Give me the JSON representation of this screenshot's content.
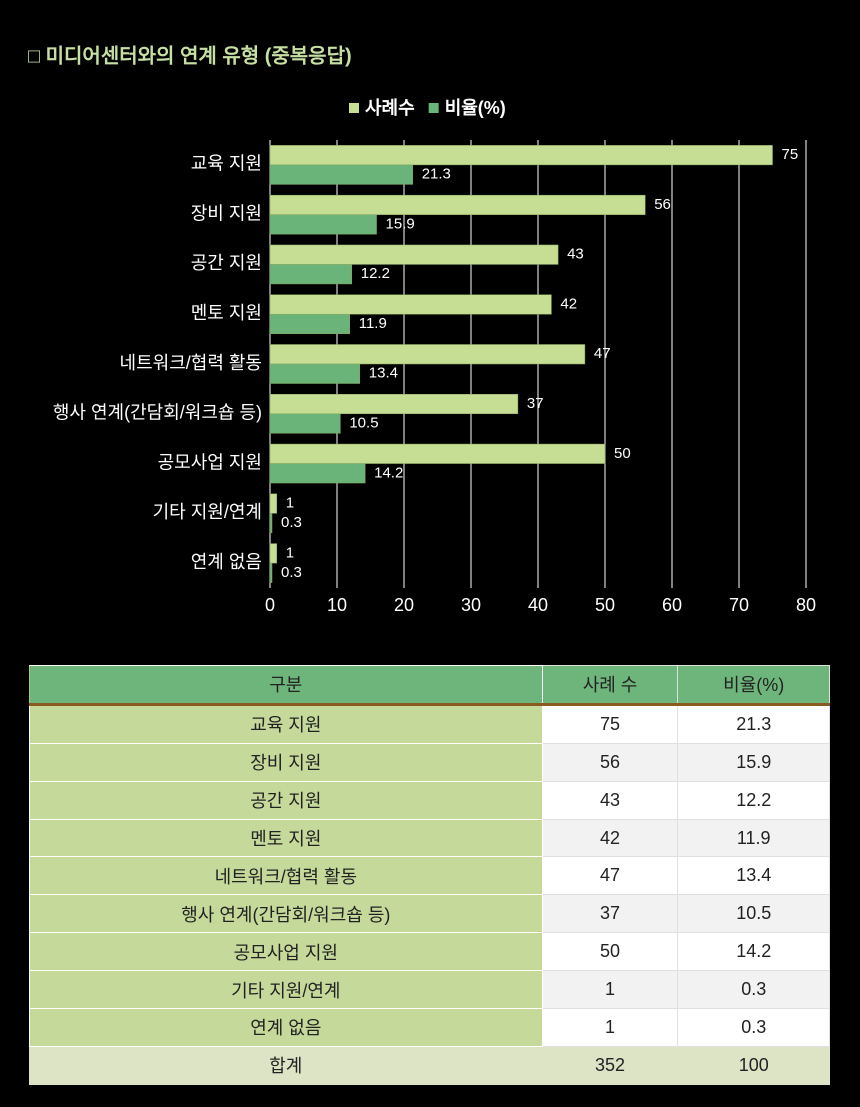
{
  "chart_data": {
    "type": "bar",
    "orientation": "horizontal",
    "title": "□ 미디어센터와의 연계 유형 (중복응답)",
    "categories": [
      "교육 지원",
      "장비 지원",
      "공간 지원",
      "멘토 지원",
      "네트워크/협력 활동",
      "행사 연계(간담회/워크숍 등)",
      "공모사업 지원",
      "기타 지원/연계",
      "연계 없음"
    ],
    "series": [
      {
        "name": "사례수",
        "color": "#c5de94",
        "values": [
          75,
          56,
          43,
          42,
          47,
          37,
          50,
          1,
          1
        ]
      },
      {
        "name": "비율(%)",
        "color": "#6ab47a",
        "values": [
          21.3,
          15.9,
          12.2,
          11.9,
          13.4,
          10.5,
          14.2,
          0.3,
          0.3
        ]
      }
    ],
    "xlim": [
      0,
      80
    ],
    "xticks": [
      0,
      10,
      20,
      30,
      40,
      50,
      60,
      70,
      80
    ],
    "grid": true,
    "legend": "top"
  },
  "table": {
    "header": [
      "구분",
      "사례 수",
      "비율(%)"
    ],
    "rows": [
      [
        "교육 지원",
        75,
        21.3
      ],
      [
        "장비 지원",
        56,
        15.9
      ],
      [
        "공간 지원",
        43,
        12.2
      ],
      [
        "멘토 지원",
        42,
        11.9
      ],
      [
        "네트워크/협력 활동",
        47,
        13.4
      ],
      [
        "행사 연계(간담회/워크숍 등)",
        37,
        10.5
      ],
      [
        "공모사업 지원",
        50,
        14.2
      ],
      [
        "기타 지원/연계",
        1,
        0.3
      ],
      [
        "연계 없음",
        1,
        0.3
      ]
    ],
    "total": [
      "합계",
      352,
      100
    ]
  }
}
